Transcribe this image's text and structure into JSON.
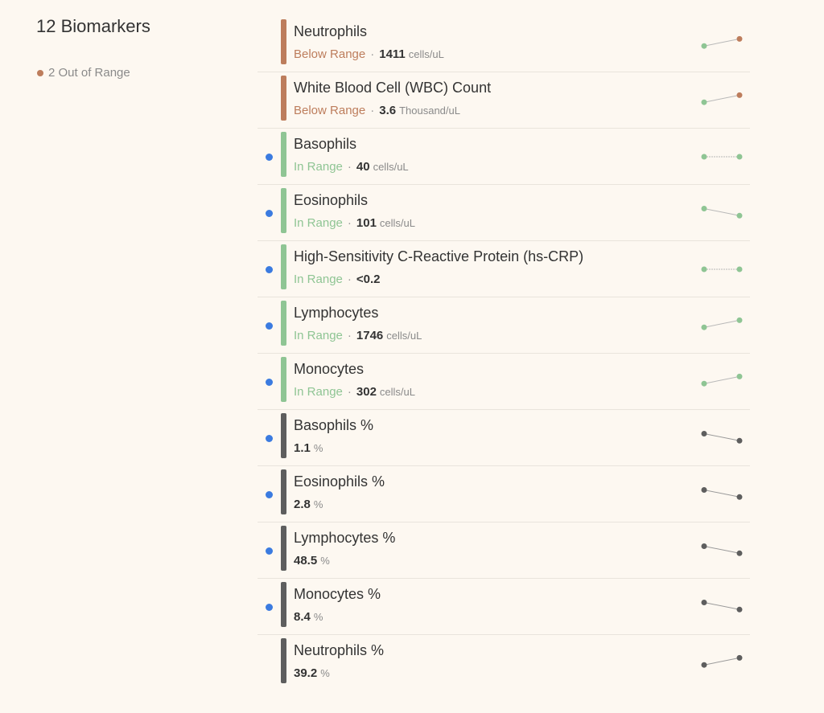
{
  "summary": {
    "title": "12 Biomarkers",
    "out_of_range": "2 Out of Range"
  },
  "colors": {
    "below": "#bd7d5c",
    "in": "#8fc594",
    "none": "#5e5e5e",
    "new_dot": "#3b7be0"
  },
  "biomarkers": [
    {
      "name": "Neutrophils",
      "status": "Below Range",
      "kind": "below",
      "value": "1411",
      "unit": "cells/uL",
      "new": false,
      "trend": [
        0.6,
        0.2
      ]
    },
    {
      "name": "White Blood Cell (WBC) Count",
      "status": "Below Range",
      "kind": "below",
      "value": "3.6",
      "unit": "Thousand/uL",
      "new": false,
      "trend": [
        0.6,
        0.2
      ]
    },
    {
      "name": "Basophils",
      "status": "In Range",
      "kind": "in",
      "value": "40",
      "unit": "cells/uL",
      "new": true,
      "trend": [
        0.5,
        0.5
      ]
    },
    {
      "name": "Eosinophils",
      "status": "In Range",
      "kind": "in",
      "value": "101",
      "unit": "cells/uL",
      "new": true,
      "trend": [
        0.25,
        0.65
      ]
    },
    {
      "name": "High-Sensitivity C-Reactive Protein (hs-CRP)",
      "status": "In Range",
      "kind": "in",
      "value": "<0.2",
      "unit": "",
      "new": true,
      "trend": [
        0.5,
        0.5
      ]
    },
    {
      "name": "Lymphocytes",
      "status": "In Range",
      "kind": "in",
      "value": "1746",
      "unit": "cells/uL",
      "new": true,
      "trend": [
        0.6,
        0.2
      ]
    },
    {
      "name": "Monocytes",
      "status": "In Range",
      "kind": "in",
      "value": "302",
      "unit": "cells/uL",
      "new": true,
      "trend": [
        0.6,
        0.2
      ]
    },
    {
      "name": "Basophils %",
      "status": "",
      "kind": "none",
      "value": "1.1",
      "unit": "%",
      "new": true,
      "trend": [
        0.25,
        0.65
      ]
    },
    {
      "name": "Eosinophils %",
      "status": "",
      "kind": "none",
      "value": "2.8",
      "unit": "%",
      "new": true,
      "trend": [
        0.25,
        0.65
      ]
    },
    {
      "name": "Lymphocytes %",
      "status": "",
      "kind": "none",
      "value": "48.5",
      "unit": "%",
      "new": true,
      "trend": [
        0.25,
        0.65
      ]
    },
    {
      "name": "Monocytes %",
      "status": "",
      "kind": "none",
      "value": "8.4",
      "unit": "%",
      "new": true,
      "trend": [
        0.25,
        0.65
      ]
    },
    {
      "name": "Neutrophils %",
      "status": "",
      "kind": "none",
      "value": "39.2",
      "unit": "%",
      "new": false,
      "trend": [
        0.6,
        0.2
      ]
    }
  ]
}
